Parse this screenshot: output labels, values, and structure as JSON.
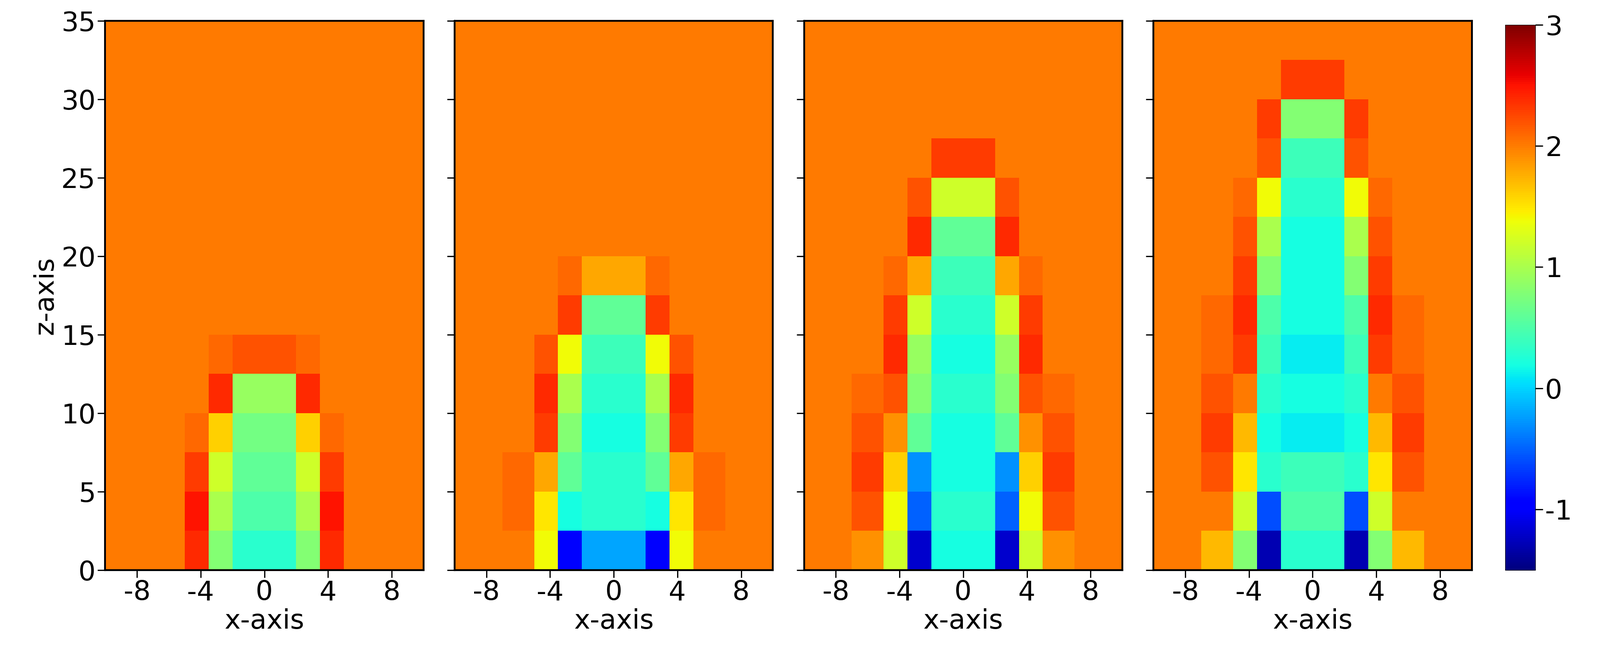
{
  "chart_data": [
    {
      "type": "heatmap",
      "xlabel": "x-axis",
      "ylabel": "z-axis",
      "tick_labels": true,
      "xlim": [
        -10,
        10
      ],
      "ylim": [
        0,
        35
      ],
      "xticks": [
        -8,
        -4,
        0,
        4,
        8
      ],
      "yticks": [
        0,
        5,
        10,
        15,
        20,
        25,
        30,
        35
      ],
      "x_edges": [
        -10,
        -7,
        -5,
        -3.5,
        -2,
        0,
        2,
        3.5,
        5,
        7,
        10
      ],
      "z_edges": [
        0,
        2.5,
        5,
        7.5,
        10,
        12.5,
        15,
        17.5,
        20,
        22.5,
        25,
        27.5,
        30,
        32.5,
        35
      ],
      "cells": [
        [
          2,
          2,
          2.4,
          0.8,
          0.3,
          0.3,
          0.8,
          2.4,
          2,
          2
        ],
        [
          2,
          2,
          2.5,
          1.0,
          0.5,
          0.5,
          1.0,
          2.5,
          2,
          2
        ],
        [
          2,
          2,
          2.3,
          1.2,
          0.6,
          0.6,
          1.2,
          2.3,
          2,
          2
        ],
        [
          2,
          2,
          2.1,
          1.6,
          0.7,
          0.7,
          1.6,
          2.1,
          2,
          2
        ],
        [
          2,
          2,
          2,
          2.4,
          0.9,
          0.9,
          2.4,
          2,
          2,
          2
        ],
        [
          2,
          2,
          2,
          2.1,
          2.2,
          2.2,
          2.1,
          2,
          2,
          2
        ],
        [
          2,
          2,
          2,
          2,
          2,
          2,
          2,
          2,
          2,
          2
        ],
        [
          2,
          2,
          2,
          2,
          2,
          2,
          2,
          2,
          2,
          2
        ],
        [
          2,
          2,
          2,
          2,
          2,
          2,
          2,
          2,
          2,
          2
        ],
        [
          2,
          2,
          2,
          2,
          2,
          2,
          2,
          2,
          2,
          2
        ],
        [
          2,
          2,
          2,
          2,
          2,
          2,
          2,
          2,
          2,
          2
        ],
        [
          2,
          2,
          2,
          2,
          2,
          2,
          2,
          2,
          2,
          2
        ],
        [
          2,
          2,
          2,
          2,
          2,
          2,
          2,
          2,
          2,
          2
        ],
        [
          2,
          2,
          2,
          2,
          2,
          2,
          2,
          2,
          2,
          2
        ]
      ]
    },
    {
      "type": "heatmap",
      "xlabel": "x-axis",
      "tick_labels": "x",
      "xlim": [
        -10,
        10
      ],
      "ylim": [
        0,
        35
      ],
      "xticks": [
        -8,
        -4,
        0,
        4,
        8
      ],
      "yticks": [
        0,
        5,
        10,
        15,
        20,
        25,
        30,
        35
      ],
      "x_edges": [
        -10,
        -7,
        -5,
        -3.5,
        -2,
        0,
        2,
        3.5,
        5,
        7,
        10
      ],
      "z_edges": [
        0,
        2.5,
        5,
        7.5,
        10,
        12.5,
        15,
        17.5,
        20,
        22.5,
        25,
        27.5,
        30,
        32.5,
        35
      ],
      "cells": [
        [
          2,
          2,
          1.4,
          -1.0,
          -0.2,
          -0.2,
          -1.0,
          1.4,
          2,
          2
        ],
        [
          2,
          2.1,
          1.5,
          0.2,
          0.3,
          0.3,
          0.2,
          1.5,
          2.1,
          2
        ],
        [
          2,
          2.1,
          1.8,
          0.6,
          0.3,
          0.3,
          0.6,
          1.8,
          2.1,
          2
        ],
        [
          2,
          2,
          2.3,
          0.8,
          0.2,
          0.2,
          0.8,
          2.3,
          2,
          2
        ],
        [
          2,
          2,
          2.4,
          1.0,
          0.3,
          0.3,
          1.0,
          2.4,
          2,
          2
        ],
        [
          2,
          2,
          2.2,
          1.4,
          0.4,
          0.4,
          1.4,
          2.2,
          2,
          2
        ],
        [
          2,
          2,
          2,
          2.3,
          0.6,
          0.6,
          2.3,
          2,
          2,
          2
        ],
        [
          2,
          2,
          2,
          2.1,
          1.8,
          1.8,
          2.1,
          2,
          2,
          2
        ],
        [
          2,
          2,
          2,
          2,
          2,
          2,
          2,
          2,
          2,
          2
        ],
        [
          2,
          2,
          2,
          2,
          2,
          2,
          2,
          2,
          2,
          2
        ],
        [
          2,
          2,
          2,
          2,
          2,
          2,
          2,
          2,
          2,
          2
        ],
        [
          2,
          2,
          2,
          2,
          2,
          2,
          2,
          2,
          2,
          2
        ],
        [
          2,
          2,
          2,
          2,
          2,
          2,
          2,
          2,
          2,
          2
        ],
        [
          2,
          2,
          2,
          2,
          2,
          2,
          2,
          2,
          2,
          2
        ]
      ]
    },
    {
      "type": "heatmap",
      "xlabel": "x-axis",
      "tick_labels": "x",
      "xlim": [
        -10,
        10
      ],
      "ylim": [
        0,
        35
      ],
      "xticks": [
        -8,
        -4,
        0,
        4,
        8
      ],
      "yticks": [
        0,
        5,
        10,
        15,
        20,
        25,
        30,
        35
      ],
      "x_edges": [
        -10,
        -7,
        -5,
        -3.5,
        -2,
        0,
        2,
        3.5,
        5,
        7,
        10
      ],
      "z_edges": [
        0,
        2.5,
        5,
        7.5,
        10,
        12.5,
        15,
        17.5,
        20,
        22.5,
        25,
        27.5,
        30,
        32.5,
        35
      ],
      "cells": [
        [
          2,
          1.9,
          1.2,
          -1.2,
          0.2,
          0.2,
          -1.2,
          1.2,
          1.9,
          2
        ],
        [
          2,
          2.2,
          1.4,
          -0.5,
          0.3,
          0.3,
          -0.5,
          1.4,
          2.2,
          2
        ],
        [
          2,
          2.3,
          1.6,
          -0.3,
          0.2,
          0.2,
          -0.3,
          1.6,
          2.3,
          2
        ],
        [
          2,
          2.2,
          1.9,
          0.6,
          0.2,
          0.2,
          0.6,
          1.9,
          2.2,
          2
        ],
        [
          2,
          2.1,
          2.2,
          0.8,
          0.3,
          0.3,
          0.8,
          2.2,
          2.1,
          2
        ],
        [
          2,
          2,
          2.4,
          0.9,
          0.2,
          0.2,
          0.9,
          2.4,
          2,
          2
        ],
        [
          2,
          2,
          2.3,
          1.2,
          0.3,
          0.3,
          1.2,
          2.3,
          2,
          2
        ],
        [
          2,
          2,
          2.1,
          1.8,
          0.4,
          0.4,
          1.8,
          2.1,
          2,
          2
        ],
        [
          2,
          2,
          2,
          2.4,
          0.6,
          0.6,
          2.4,
          2,
          2,
          2
        ],
        [
          2,
          2,
          2,
          2.2,
          1.2,
          1.2,
          2.2,
          2,
          2,
          2
        ],
        [
          2,
          2,
          2,
          2,
          2.3,
          2.3,
          2,
          2,
          2,
          2
        ],
        [
          2,
          2,
          2,
          2,
          2,
          2,
          2,
          2,
          2,
          2
        ],
        [
          2,
          2,
          2,
          2,
          2,
          2,
          2,
          2,
          2,
          2
        ],
        [
          2,
          2,
          2,
          2,
          2,
          2,
          2,
          2,
          2,
          2
        ]
      ]
    },
    {
      "type": "heatmap",
      "xlabel": "x-axis",
      "tick_labels": "x",
      "xlim": [
        -10,
        10
      ],
      "ylim": [
        0,
        35
      ],
      "xticks": [
        -8,
        -4,
        0,
        4,
        8
      ],
      "yticks": [
        0,
        5,
        10,
        15,
        20,
        25,
        30,
        35
      ],
      "x_edges": [
        -10,
        -7,
        -5,
        -3.5,
        -2,
        0,
        2,
        3.5,
        5,
        7,
        10
      ],
      "z_edges": [
        0,
        2.5,
        5,
        7.5,
        10,
        12.5,
        15,
        17.5,
        20,
        22.5,
        25,
        27.5,
        30,
        32.5,
        35
      ],
      "cells": [
        [
          2,
          1.7,
          0.8,
          -1.3,
          0.3,
          0.3,
          -1.3,
          0.8,
          1.7,
          2
        ],
        [
          2,
          2.0,
          1.2,
          -0.6,
          0.5,
          0.5,
          -0.6,
          1.2,
          2.0,
          2
        ],
        [
          2,
          2.2,
          1.5,
          0.3,
          0.4,
          0.4,
          0.3,
          1.5,
          2.2,
          2
        ],
        [
          2,
          2.3,
          1.7,
          0.2,
          0.1,
          0.1,
          0.2,
          1.7,
          2.3,
          2
        ],
        [
          2,
          2.2,
          2.0,
          0.3,
          0.2,
          0.2,
          0.3,
          2.0,
          2.2,
          2
        ],
        [
          2,
          2.1,
          2.3,
          0.4,
          0.1,
          0.1,
          0.4,
          2.3,
          2.1,
          2
        ],
        [
          2,
          2.1,
          2.4,
          0.5,
          0.2,
          0.2,
          0.5,
          2.4,
          2.1,
          2
        ],
        [
          2,
          2,
          2.3,
          0.8,
          0.2,
          0.2,
          0.8,
          2.3,
          2,
          2
        ],
        [
          2,
          2,
          2.2,
          1.0,
          0.2,
          0.2,
          1.0,
          2.2,
          2,
          2
        ],
        [
          2,
          2,
          2.1,
          1.4,
          0.3,
          0.3,
          1.4,
          2.1,
          2,
          2
        ],
        [
          2,
          2,
          2,
          2.2,
          0.4,
          0.4,
          2.2,
          2,
          2,
          2
        ],
        [
          2,
          2,
          2,
          2.3,
          0.8,
          0.8,
          2.3,
          2,
          2,
          2
        ],
        [
          2,
          2,
          2,
          2,
          2.3,
          2.3,
          2,
          2,
          2,
          2
        ],
        [
          2,
          2,
          2,
          2,
          2,
          2,
          2,
          2,
          2,
          2
        ]
      ],
      "colorbar_range": [
        -1.5,
        3
      ],
      "colorbar_ticks": [
        -1,
        0,
        1,
        2,
        3
      ]
    }
  ]
}
